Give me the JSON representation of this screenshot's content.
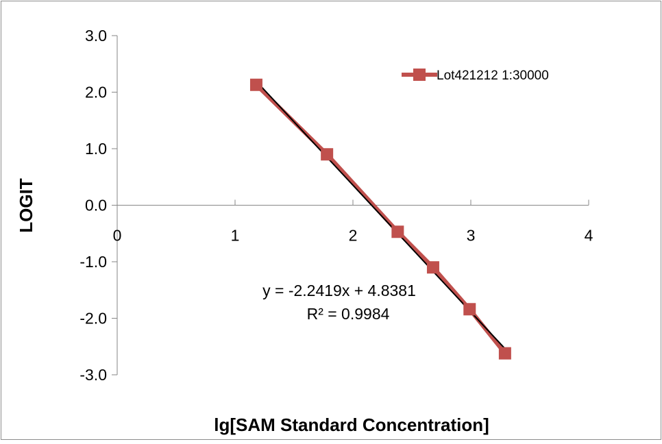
{
  "chart_data": {
    "type": "scatter",
    "title": "",
    "xlabel": "lg[SAM Standard Concentration]",
    "ylabel": "LOGIT",
    "xlim": [
      0,
      4
    ],
    "ylim": [
      -3.0,
      3.0
    ],
    "x_ticks": [
      "0",
      "1",
      "2",
      "3",
      "4"
    ],
    "y_ticks": [
      "3.0",
      "2.0",
      "1.0",
      "0.0",
      "-1.0",
      "-2.0",
      "-3.0"
    ],
    "grid": false,
    "legend_position": "top-right",
    "series": [
      {
        "name": "Lot421212 1:30000",
        "color": "#c0504d",
        "marker": "square",
        "x": [
          1.18,
          1.78,
          2.38,
          2.68,
          2.99,
          3.29
        ],
        "y": [
          2.13,
          0.9,
          -0.47,
          -1.1,
          -1.84,
          -2.62
        ]
      }
    ],
    "trendline": {
      "color": "#000000",
      "slope": -2.2419,
      "intercept": 4.8381,
      "equation": "y = -2.2419x + 4.8381",
      "r_squared": "R² = 0.9984"
    }
  }
}
